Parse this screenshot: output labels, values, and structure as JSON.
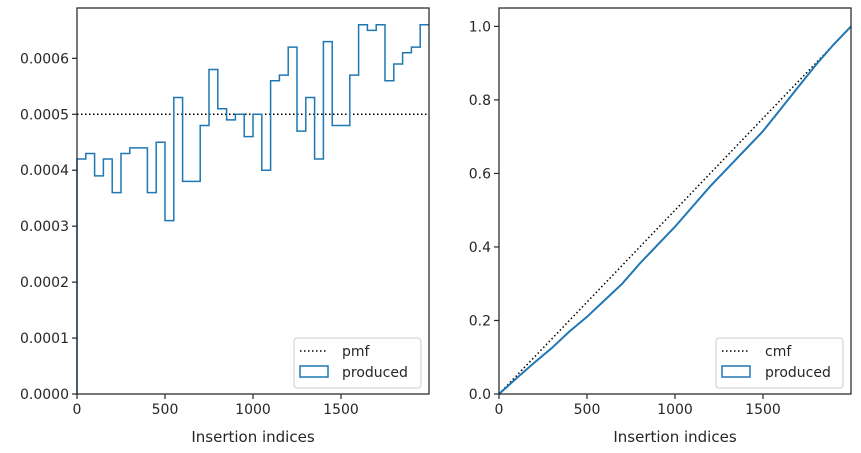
{
  "colors": {
    "step": "#1f77b4",
    "reference": "#000000",
    "frame": "#262626"
  },
  "chart_data": [
    {
      "type": "histogram-step",
      "xlabel": "Insertion indices",
      "ylabel": "",
      "xlim": [
        0,
        2000
      ],
      "ylim": [
        0,
        0.00069
      ],
      "xticks": [
        0,
        500,
        1000,
        1500
      ],
      "xtick_labels": [
        "0",
        "500",
        "1000",
        "1500"
      ],
      "yticks": [
        0,
        0.0001,
        0.0002,
        0.0003,
        0.0004,
        0.0005,
        0.0006
      ],
      "ytick_labels": [
        "0.0000",
        "0.0001",
        "0.0002",
        "0.0003",
        "0.0004",
        "0.0005",
        "0.0006"
      ],
      "bin_width": 50,
      "series": [
        {
          "name": "pmf",
          "style": "dotted",
          "value": 0.0005
        },
        {
          "name": "produced",
          "style": "step",
          "bin_edges_start": 0,
          "values": [
            0.00042,
            0.00043,
            0.00039,
            0.00042,
            0.00036,
            0.00043,
            0.00044,
            0.00044,
            0.00036,
            0.00045,
            0.00031,
            0.00053,
            0.00038,
            0.00038,
            0.00048,
            0.00058,
            0.00051,
            0.00049,
            0.0005,
            0.00046,
            0.0005,
            0.0004,
            0.00056,
            0.00057,
            0.00062,
            0.00047,
            0.00053,
            0.00042,
            0.00063,
            0.00048,
            0.00048,
            0.00057,
            0.00066,
            0.00065,
            0.00066,
            0.00056,
            0.00059,
            0.00061,
            0.00062,
            0.00066
          ]
        }
      ],
      "legend": {
        "position": "lower-right",
        "entries": [
          "pmf",
          "produced"
        ]
      }
    },
    {
      "type": "line",
      "xlabel": "Insertion indices",
      "ylabel": "",
      "xlim": [
        0,
        2000
      ],
      "ylim": [
        0,
        1.05
      ],
      "xticks": [
        0,
        500,
        1000,
        1500
      ],
      "xtick_labels": [
        "0",
        "500",
        "1000",
        "1500"
      ],
      "yticks": [
        0,
        0.2,
        0.4,
        0.6,
        0.8,
        1.0
      ],
      "ytick_labels": [
        "0.0",
        "0.2",
        "0.4",
        "0.6",
        "0.8",
        "1.0"
      ],
      "series": [
        {
          "name": "cmf",
          "style": "dotted",
          "x": [
            0,
            2000
          ],
          "y": [
            0,
            1.0
          ]
        },
        {
          "name": "produced",
          "style": "solid",
          "x": [
            0,
            100,
            200,
            300,
            400,
            500,
            600,
            700,
            800,
            900,
            1000,
            1100,
            1200,
            1300,
            1400,
            1500,
            1600,
            1700,
            1800,
            1900,
            2000
          ],
          "y": [
            0,
            0.043,
            0.085,
            0.125,
            0.17,
            0.21,
            0.255,
            0.3,
            0.355,
            0.405,
            0.455,
            0.51,
            0.565,
            0.615,
            0.665,
            0.715,
            0.775,
            0.835,
            0.895,
            0.95,
            1.0
          ]
        }
      ],
      "legend": {
        "position": "lower-right",
        "entries": [
          "cmf",
          "produced"
        ]
      }
    }
  ]
}
